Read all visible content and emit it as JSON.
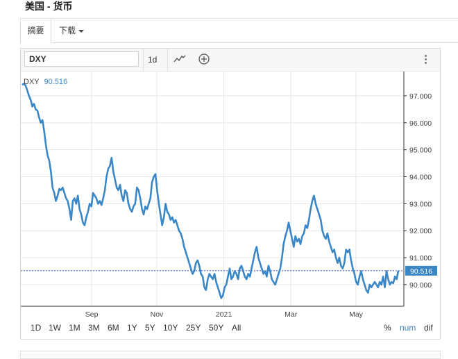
{
  "page": {
    "title": "美国 - 货币"
  },
  "tabs": [
    {
      "label": "摘要",
      "active": true
    },
    {
      "label": "下载",
      "dropdown": true
    }
  ],
  "toolbar": {
    "symbol_value": "DXY",
    "interval_label": "1d",
    "icons": [
      "line-chart-icon",
      "add-circle-icon",
      "more-vertical-icon"
    ]
  },
  "chart_data": {
    "type": "line",
    "series": [
      {
        "name": "DXY",
        "last_value": "90.516",
        "color": "#3a87c8",
        "values": [
          97.4,
          97.45,
          97.38,
          97.2,
          97.0,
          96.85,
          96.6,
          96.7,
          96.5,
          96.45,
          96.2,
          96.0,
          96.1,
          95.7,
          95.2,
          94.8,
          94.6,
          94.2,
          93.6,
          93.4,
          93.1,
          93.3,
          93.55,
          93.5,
          93.6,
          93.4,
          93.2,
          93.1,
          92.8,
          92.4,
          93.1,
          93.2,
          93.0,
          93.3,
          92.8,
          92.6,
          92.3,
          92.2,
          92.5,
          92.7,
          93.0,
          92.9,
          93.4,
          93.3,
          93.2,
          93.0,
          93.1,
          92.95,
          93.2,
          93.5,
          94.0,
          94.3,
          94.4,
          94.7,
          94.2,
          93.9,
          93.6,
          93.5,
          93.7,
          93.3,
          93.1,
          93.5,
          93.4,
          93.0,
          92.8,
          92.7,
          92.9,
          93.0,
          93.6,
          93.5,
          93.2,
          92.8,
          92.6,
          92.9,
          92.8,
          93.0,
          93.2,
          93.8,
          94.0,
          94.1,
          93.5,
          93.0,
          92.6,
          92.2,
          92.5,
          93.0,
          92.7,
          92.6,
          92.4,
          92.5,
          92.3,
          92.4,
          92.2,
          92.0,
          91.9,
          91.7,
          91.4,
          91.2,
          91.0,
          90.8,
          90.6,
          90.4,
          90.5,
          90.8,
          90.9,
          90.7,
          90.4,
          90.3,
          89.9,
          89.8,
          90.2,
          90.4,
          90.3,
          90.2,
          90.4,
          90.1,
          89.9,
          89.7,
          89.5,
          89.6,
          89.9,
          90.0,
          90.3,
          90.6,
          90.2,
          90.3,
          90.5,
          90.4,
          90.2,
          90.6,
          90.7,
          90.5,
          90.3,
          90.2,
          90.4,
          90.3,
          90.6,
          90.9,
          91.2,
          91.4,
          91.0,
          90.8,
          90.6,
          90.4,
          90.5,
          90.3,
          90.7,
          90.5,
          90.2,
          90.1,
          90.0,
          90.2,
          90.4,
          90.6,
          91.0,
          91.5,
          91.8,
          92.0,
          92.3,
          92.0,
          91.7,
          91.4,
          91.8,
          91.6,
          91.7,
          91.5,
          91.8,
          91.9,
          92.2,
          92.1,
          92.4,
          92.8,
          93.1,
          93.3,
          93.0,
          92.8,
          92.6,
          92.4,
          92.0,
          91.8,
          91.7,
          91.9,
          91.6,
          91.4,
          91.2,
          91.3,
          91.0,
          90.8,
          91.0,
          90.7,
          90.6,
          90.8,
          91.3,
          91.2,
          91.3,
          90.9,
          90.6,
          90.4,
          90.1,
          90.0,
          90.3,
          90.5,
          90.2,
          90.0,
          89.8,
          89.7,
          90.0,
          89.9,
          90.0,
          90.1,
          90.0,
          89.9,
          90.1,
          90.0,
          90.3,
          89.9,
          90.5,
          90.2,
          90.0,
          90.1,
          90.05,
          90.3,
          90.2,
          90.516
        ]
      }
    ],
    "y_ticks": [
      "97.000",
      "96.000",
      "95.000",
      "94.000",
      "93.000",
      "92.000",
      "91.000",
      "90.000"
    ],
    "x_labels": [
      "Sep",
      "Nov",
      "2021",
      "Mar",
      "May"
    ],
    "ylim": [
      89.2,
      97.9
    ],
    "reference_line": 90.516,
    "grid": true
  },
  "ranges": [
    "1D",
    "1W",
    "1M",
    "3M",
    "6M",
    "1Y",
    "5Y",
    "10Y",
    "25Y",
    "50Y",
    "All"
  ],
  "modes": [
    "%",
    "num",
    "dif"
  ]
}
